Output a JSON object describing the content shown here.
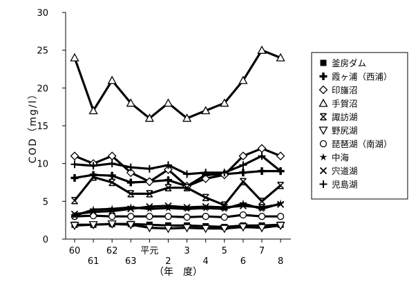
{
  "chart_data": {
    "type": "line",
    "title": "",
    "ylabel": "COD（mg/l）",
    "xlabel": "（年　度）",
    "ylim": [
      0,
      30
    ],
    "yticks": [
      0,
      5,
      10,
      15,
      20,
      25,
      30
    ],
    "x": [
      "60",
      "61",
      "62",
      "63",
      "平元",
      "2",
      "3",
      "4",
      "5",
      "6",
      "7",
      "8"
    ],
    "grid": false,
    "legend_position": "right",
    "series": [
      {
        "name": "釜房ダム",
        "marker": "square",
        "values": [
          1.9,
          1.9,
          2.0,
          2.0,
          1.9,
          1.8,
          1.8,
          1.7,
          1.6,
          1.8,
          1.8,
          1.9
        ]
      },
      {
        "name": "霞ヶ浦（西浦）",
        "marker": "plus-thick",
        "values": [
          8.1,
          8.5,
          8.4,
          7.5,
          7.6,
          7.8,
          7.0,
          8.5,
          8.6,
          8.8,
          9.0,
          9.0
        ]
      },
      {
        "name": "印旛沼",
        "marker": "diamond",
        "values": [
          11.0,
          10.0,
          11.0,
          8.8,
          7.6,
          9.2,
          7.0,
          8.0,
          8.5,
          11.0,
          12.0,
          11.0
        ]
      },
      {
        "name": "手賀沼",
        "marker": "triangle",
        "values": [
          24.0,
          17.0,
          21.0,
          18.0,
          16.0,
          18.0,
          16.0,
          17.0,
          18.0,
          21.0,
          25.0,
          24.0
        ]
      },
      {
        "name": "諏訪湖",
        "marker": "x-box",
        "values": [
          5.1,
          8.2,
          7.5,
          6.0,
          6.0,
          6.8,
          6.8,
          5.5,
          4.5,
          7.6,
          5.0,
          7.1
        ]
      },
      {
        "name": "野尻湖",
        "marker": "triangle-down",
        "values": [
          1.8,
          1.9,
          2.0,
          1.9,
          1.5,
          1.4,
          1.5,
          1.4,
          1.4,
          1.6,
          1.5,
          1.8
        ]
      },
      {
        "name": "琵琶湖（南湖）",
        "marker": "circle",
        "values": [
          3.0,
          3.1,
          3.0,
          3.0,
          3.0,
          3.0,
          2.9,
          3.0,
          2.9,
          3.2,
          3.0,
          3.0
        ]
      },
      {
        "name": "中海",
        "marker": "star",
        "values": [
          3.1,
          3.9,
          4.0,
          4.2,
          4.0,
          4.1,
          4.0,
          4.1,
          4.0,
          4.7,
          4.0,
          4.7
        ]
      },
      {
        "name": "宍道湖",
        "marker": "x",
        "values": [
          3.3,
          3.6,
          3.7,
          4.0,
          4.3,
          4.4,
          4.2,
          4.3,
          4.2,
          4.4,
          4.2,
          4.6
        ]
      },
      {
        "name": "児島湖",
        "marker": "plus",
        "values": [
          9.9,
          9.7,
          10.0,
          9.5,
          9.3,
          9.8,
          8.6,
          8.8,
          8.8,
          9.8,
          11.0,
          9.0
        ]
      }
    ]
  }
}
